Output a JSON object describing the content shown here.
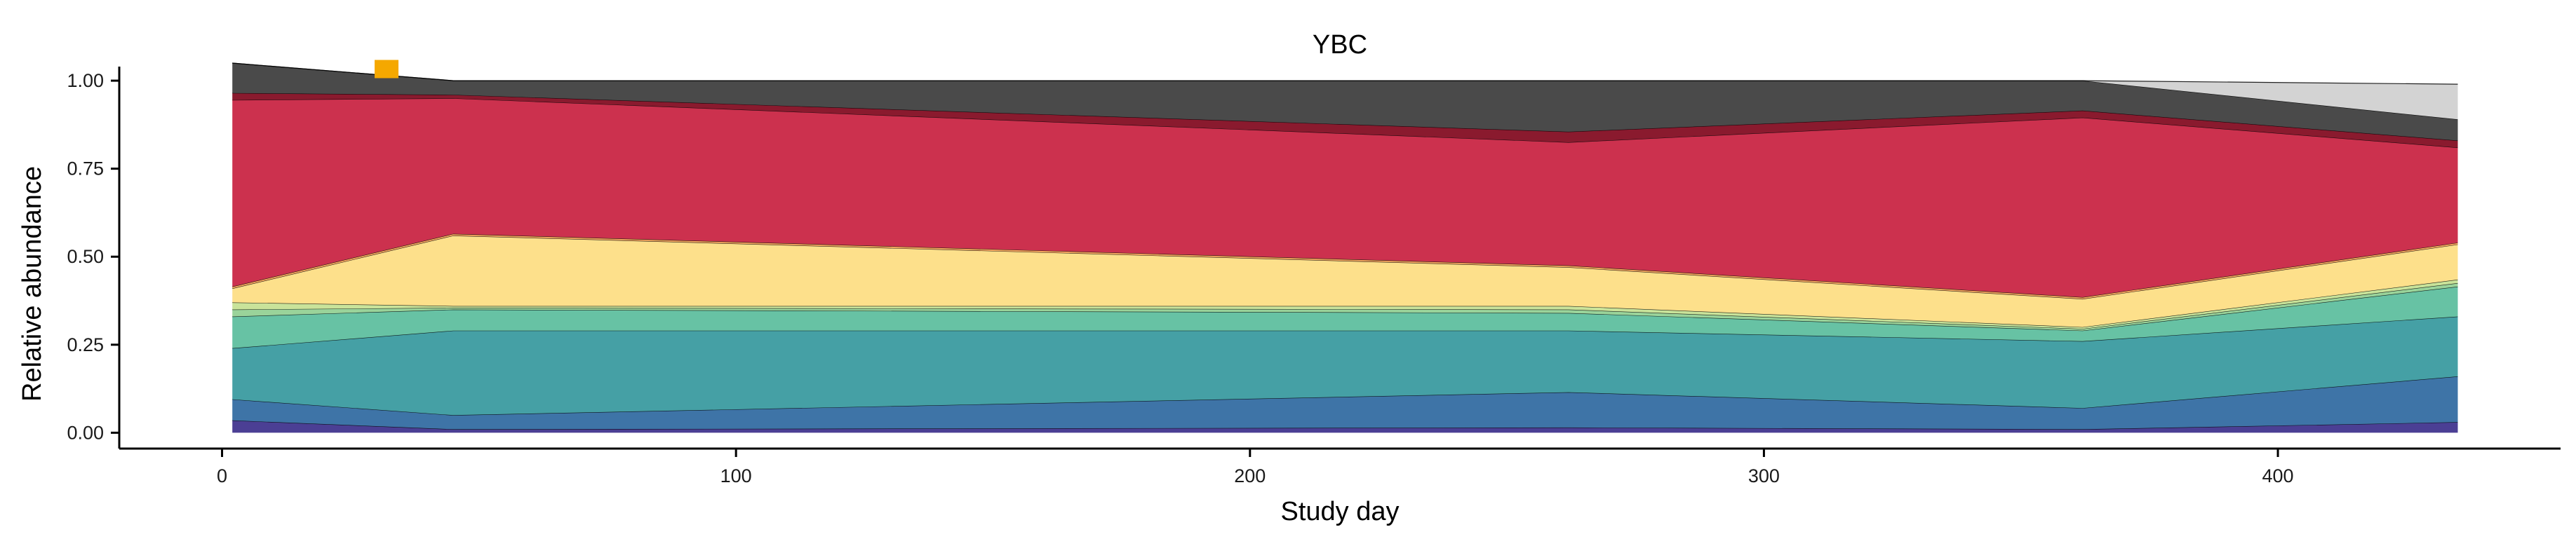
{
  "chart_data": {
    "type": "area",
    "stacked": true,
    "title": "YBC",
    "xlabel": "Study day",
    "ylabel": "Relative abundance",
    "xlim": [
      -20,
      455
    ],
    "ylim": [
      -0.045,
      1.04
    ],
    "x_ticks": [
      0,
      100,
      200,
      300,
      400
    ],
    "y_ticks": [
      0.0,
      0.25,
      0.5,
      0.75,
      1.0
    ],
    "y_tick_labels": [
      "0.00",
      "0.25",
      "0.50",
      "0.75",
      "1.00"
    ],
    "x": [
      2,
      45,
      262,
      362,
      435
    ],
    "grid": false,
    "legend": "none",
    "marker": {
      "x": 32,
      "y": 1.025,
      "color": "#F5A800"
    },
    "series": [
      {
        "color": "#4B3F94",
        "values": [
          0.035,
          0.01,
          0.015,
          0.01,
          0.03
        ]
      },
      {
        "color": "#3E74A7",
        "values": [
          0.06,
          0.04,
          0.1,
          0.06,
          0.13
        ]
      },
      {
        "color": "#45A0A5",
        "values": [
          0.145,
          0.24,
          0.175,
          0.19,
          0.17
        ]
      },
      {
        "color": "#67C2A4",
        "values": [
          0.09,
          0.06,
          0.05,
          0.03,
          0.085
        ]
      },
      {
        "color": "#9AD39A",
        "values": [
          0.02,
          0.005,
          0.01,
          0.005,
          0.01
        ]
      },
      {
        "color": "#C9E39A",
        "values": [
          0.02,
          0.005,
          0.01,
          0.005,
          0.01
        ]
      },
      {
        "color": "#FDE08B",
        "values": [
          0.04,
          0.2,
          0.11,
          0.08,
          0.1
        ]
      },
      {
        "color": "#F4A55E",
        "values": [
          0.005,
          0.005,
          0.005,
          0.005,
          0.005
        ]
      },
      {
        "color": "#CC314E",
        "values": [
          0.53,
          0.385,
          0.35,
          0.51,
          0.27
        ]
      },
      {
        "color": "#8A1A2E",
        "values": [
          0.02,
          0.01,
          0.03,
          0.02,
          0.02
        ]
      },
      {
        "color": "#4A4A4A",
        "values": [
          0.085,
          0.04,
          0.145,
          0.085,
          0.06
        ]
      },
      {
        "color": "#D3D3D3",
        "values": [
          0.0,
          0.0,
          0.0,
          0.0,
          0.1
        ]
      }
    ]
  }
}
